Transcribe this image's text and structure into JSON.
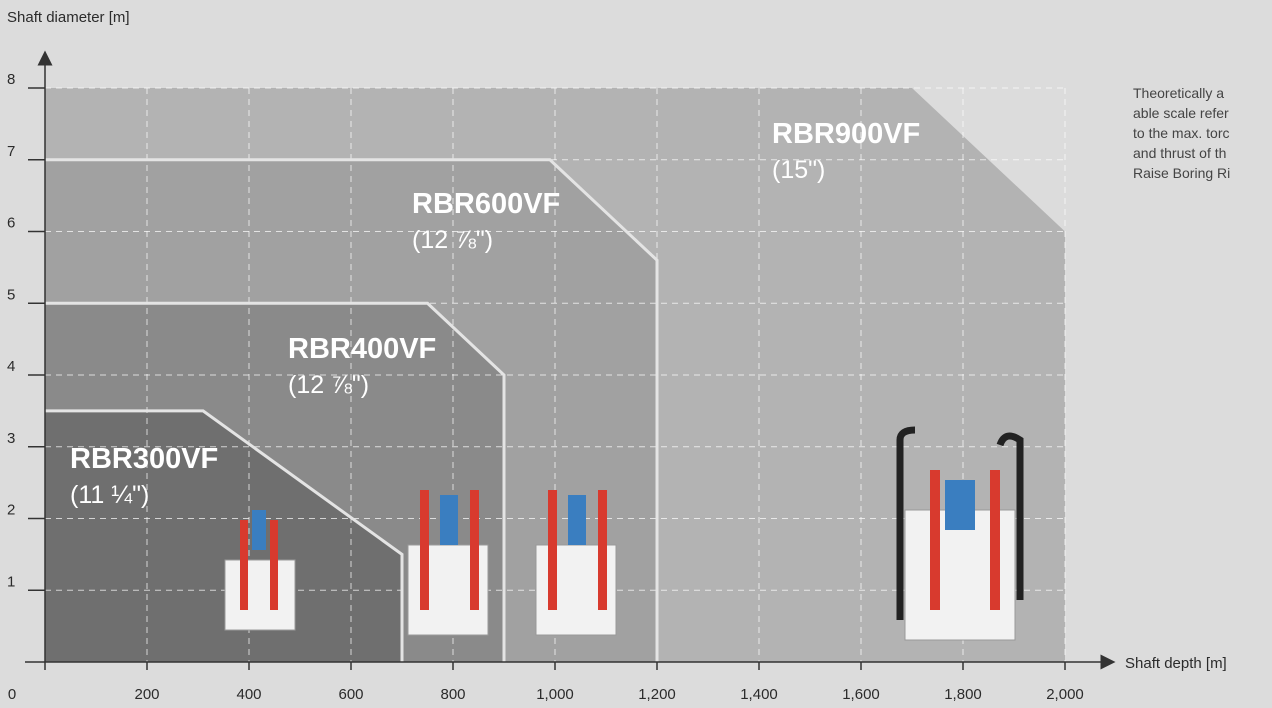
{
  "chart_data": {
    "type": "area",
    "y_label": "Shaft diameter [m]",
    "x_label": "Shaft depth [m]",
    "note": [
      "Theoretically a",
      "able scale refer",
      "to the max. torc",
      "and thrust of th",
      "Raise Boring Ri"
    ],
    "xlim": [
      0,
      2000
    ],
    "ylim": [
      0,
      8
    ],
    "xticks": [
      0,
      200,
      400,
      600,
      800,
      {
        "value": 1000,
        "label": "1,000"
      },
      {
        "value": 1200,
        "label": "1,200"
      },
      {
        "value": 1400,
        "label": "1,400"
      },
      {
        "value": 1600,
        "label": "1,600"
      },
      {
        "value": 1800,
        "label": "1,800"
      },
      {
        "value": 2000,
        "label": "2,000"
      }
    ],
    "yticks": [
      1,
      2,
      3,
      4,
      5,
      6,
      7,
      8
    ],
    "grid": true,
    "series": [
      {
        "name": "RBR900VF",
        "size": "(15\")",
        "color": "#b3b3b3",
        "x": [
          0,
          1700,
          2000
        ],
        "values": [
          8,
          8,
          6
        ]
      },
      {
        "name": "RBR600VF",
        "size": "(12 ⅞\")",
        "color": "#a1a1a1",
        "x": [
          0,
          990,
          1200
        ],
        "values": [
          7,
          7,
          5.6
        ]
      },
      {
        "name": "RBR400VF",
        "size": "(12 ⅞\")",
        "color": "#8a8a8a",
        "x": [
          0,
          750,
          900
        ],
        "values": [
          5,
          5,
          4
        ]
      },
      {
        "name": "RBR300VF",
        "size": "(11 ¼\")",
        "color": "#6f6f6f",
        "x": [
          0,
          310,
          700
        ],
        "values": [
          3.5,
          3.5,
          1.5
        ]
      }
    ]
  }
}
